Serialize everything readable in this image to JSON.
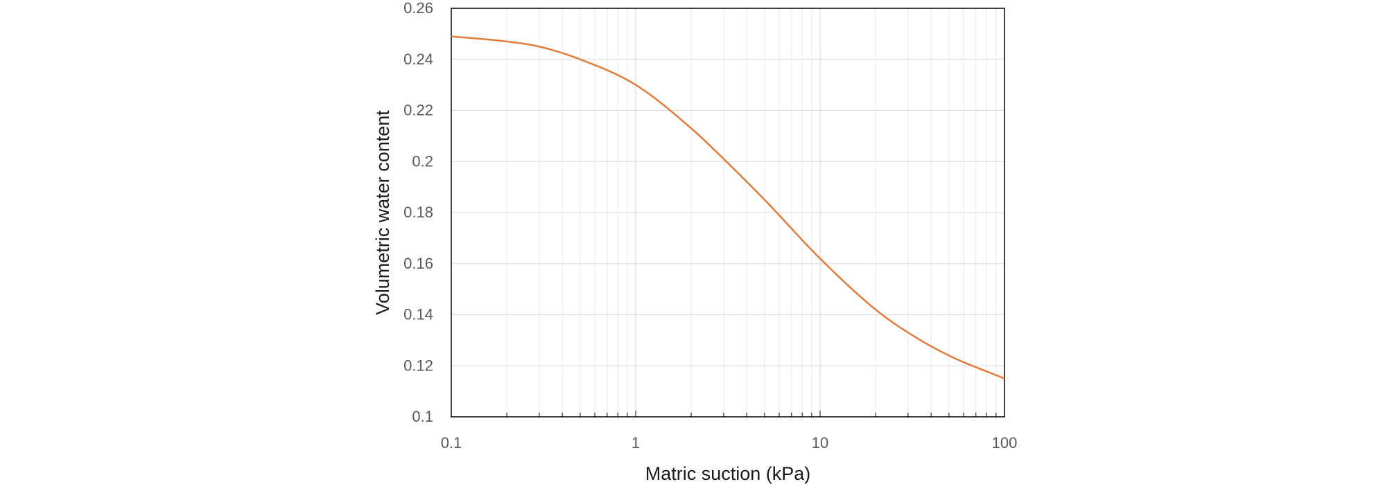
{
  "chart_data": {
    "type": "line",
    "title": "",
    "xlabel": "Matric suction (kPa)",
    "ylabel": "Volumetric water content",
    "x_scale": "log",
    "xlim": [
      0.1,
      100
    ],
    "ylim": [
      0.1,
      0.26
    ],
    "x_ticks": [
      "0.1",
      "1",
      "10",
      "100"
    ],
    "y_ticks": [
      "0.1",
      "0.12",
      "0.14",
      "0.16",
      "0.18",
      "0.2",
      "0.22",
      "0.24",
      "0.26"
    ],
    "grid": true,
    "legend": "none",
    "series": [
      {
        "color": "#E07B39",
        "x": [
          0.1,
          0.2,
          0.3,
          0.5,
          1,
          2,
          3,
          5,
          10,
          20,
          30,
          50,
          100
        ],
        "y": [
          0.249,
          0.247,
          0.245,
          0.24,
          0.23,
          0.213,
          0.201,
          0.185,
          0.162,
          0.142,
          0.133,
          0.124,
          0.115
        ]
      }
    ]
  }
}
